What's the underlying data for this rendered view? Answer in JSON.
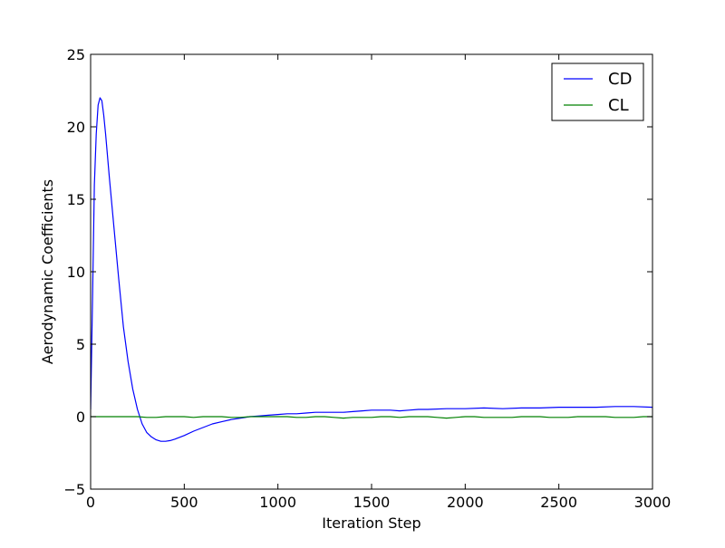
{
  "chart_data": {
    "type": "line",
    "title": "",
    "xlabel": "Iteration Step",
    "ylabel": "Aerodynamic Coefficients",
    "xlim": [
      0,
      3000
    ],
    "ylim": [
      -5,
      25
    ],
    "xticks": [
      0,
      500,
      1000,
      1500,
      2000,
      2500,
      3000
    ],
    "yticks": [
      -5,
      0,
      5,
      10,
      15,
      20,
      25
    ],
    "xtick_labels": [
      "0",
      "500",
      "1000",
      "1500",
      "2000",
      "2500",
      "3000"
    ],
    "ytick_labels": [
      "−5",
      "0",
      "5",
      "10",
      "15",
      "20",
      "25"
    ],
    "grid": false,
    "legend_position": "top-right",
    "series": [
      {
        "name": "CD",
        "color": "#0000ff",
        "x": [
          0,
          10,
          20,
          30,
          40,
          50,
          60,
          70,
          80,
          90,
          100,
          125,
          150,
          175,
          200,
          225,
          250,
          275,
          300,
          325,
          350,
          375,
          400,
          425,
          450,
          500,
          550,
          600,
          650,
          700,
          750,
          800,
          850,
          900,
          950,
          1000,
          1050,
          1100,
          1150,
          1200,
          1250,
          1300,
          1350,
          1400,
          1450,
          1500,
          1550,
          1600,
          1650,
          1700,
          1750,
          1800,
          1900,
          2000,
          2100,
          2200,
          2300,
          2400,
          2500,
          2600,
          2700,
          2800,
          2900,
          3000
        ],
        "y": [
          0.5,
          8.0,
          16.0,
          19.5,
          21.5,
          22.0,
          21.8,
          20.8,
          19.5,
          18.0,
          16.5,
          13.0,
          9.5,
          6.2,
          3.8,
          1.9,
          0.5,
          -0.5,
          -1.1,
          -1.4,
          -1.6,
          -1.7,
          -1.7,
          -1.65,
          -1.55,
          -1.3,
          -1.0,
          -0.75,
          -0.5,
          -0.35,
          -0.2,
          -0.1,
          0.0,
          0.05,
          0.1,
          0.15,
          0.2,
          0.2,
          0.25,
          0.3,
          0.3,
          0.3,
          0.3,
          0.35,
          0.4,
          0.45,
          0.45,
          0.45,
          0.4,
          0.45,
          0.5,
          0.5,
          0.55,
          0.55,
          0.6,
          0.55,
          0.6,
          0.6,
          0.65,
          0.65,
          0.65,
          0.7,
          0.7,
          0.65
        ]
      },
      {
        "name": "CL",
        "color": "#008000",
        "x": [
          0,
          50,
          100,
          150,
          200,
          250,
          300,
          350,
          400,
          450,
          500,
          550,
          600,
          650,
          700,
          750,
          800,
          850,
          900,
          950,
          1000,
          1050,
          1100,
          1150,
          1200,
          1250,
          1300,
          1350,
          1400,
          1450,
          1500,
          1550,
          1600,
          1650,
          1700,
          1750,
          1800,
          1850,
          1900,
          1950,
          2000,
          2050,
          2100,
          2150,
          2200,
          2250,
          2300,
          2350,
          2400,
          2450,
          2500,
          2550,
          2600,
          2650,
          2700,
          2750,
          2800,
          2850,
          2900,
          2950,
          3000
        ],
        "y": [
          0.0,
          0.0,
          0.0,
          0.0,
          0.0,
          0.0,
          -0.05,
          -0.05,
          0.0,
          0.0,
          0.0,
          -0.05,
          0.0,
          0.0,
          0.0,
          -0.05,
          -0.05,
          0.0,
          0.0,
          0.0,
          0.0,
          0.0,
          -0.05,
          -0.05,
          0.0,
          0.0,
          -0.05,
          -0.1,
          -0.05,
          -0.05,
          -0.05,
          0.0,
          0.0,
          -0.05,
          0.0,
          0.0,
          0.0,
          -0.05,
          -0.1,
          -0.05,
          0.0,
          0.0,
          -0.05,
          -0.05,
          -0.05,
          -0.05,
          0.0,
          0.0,
          0.0,
          -0.05,
          -0.05,
          -0.05,
          0.0,
          0.0,
          0.0,
          0.0,
          -0.05,
          -0.05,
          -0.05,
          0.0,
          0.0
        ]
      }
    ]
  }
}
